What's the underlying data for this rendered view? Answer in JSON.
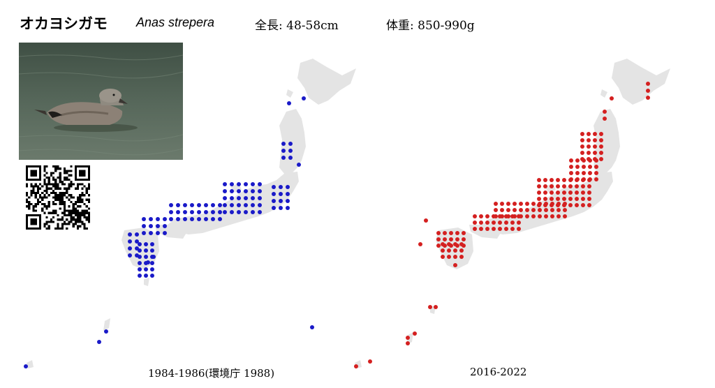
{
  "species": {
    "japanese_name": "オカヨシガモ",
    "scientific_name": "Anas strepera",
    "length": "全長: 48-58cm",
    "weight": "体重: 850-990g"
  },
  "maps": [
    {
      "period": "1984-1986(環境庁 1988)",
      "dot_color": "#1a1ac8"
    },
    {
      "period": "2016-2022",
      "dot_color": "#d42020"
    }
  ],
  "icons": {
    "photo": "gadwall-duck-photo",
    "qr": "qr-code"
  },
  "colors": {
    "land": "#e4e4e4",
    "background": "#ffffff"
  }
}
